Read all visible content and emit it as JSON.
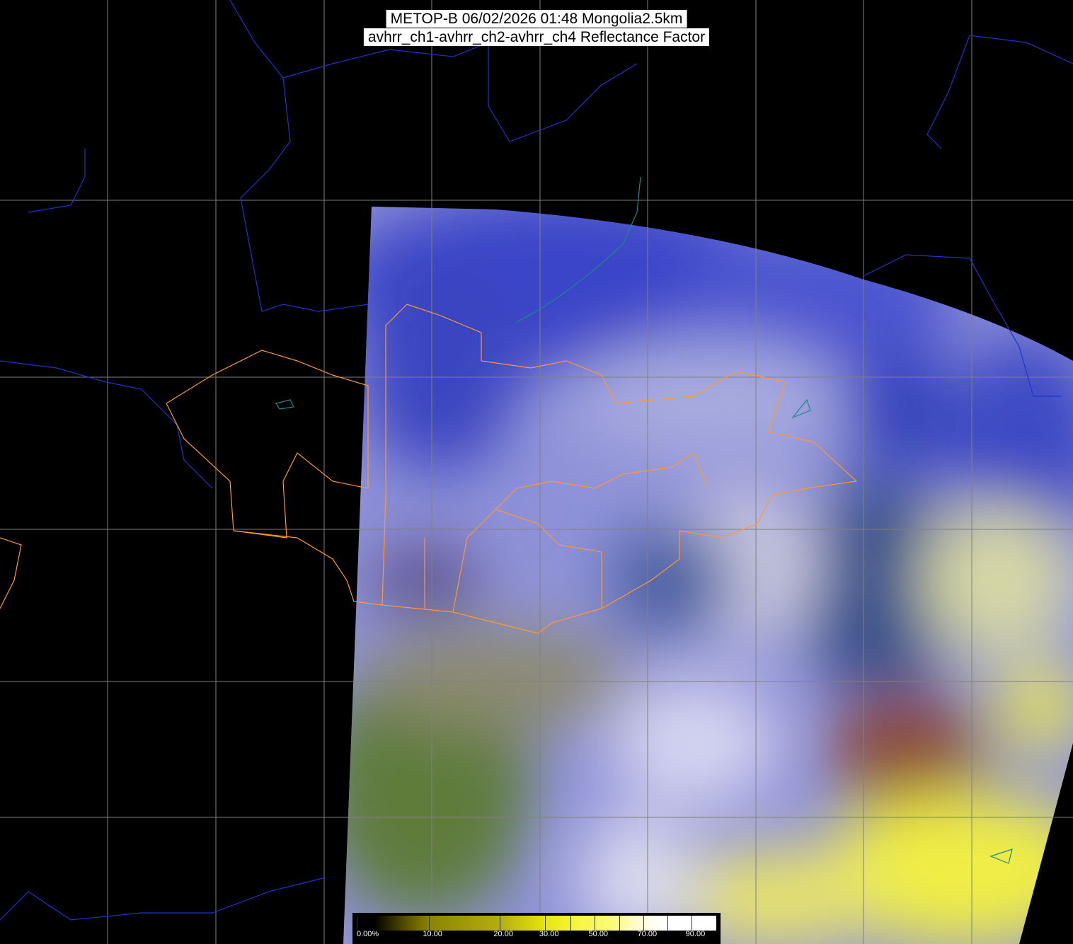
{
  "title": {
    "line1": "METOP-B 06/02/2026 01:48 Mongolia2.5km",
    "line2": "avhrr_ch1-avhrr_ch2-avhrr_ch4 Reflectance Factor"
  },
  "colorbar": {
    "ticks": [
      0,
      10,
      20,
      30,
      40,
      50,
      60,
      70,
      80,
      90
    ],
    "labels": [
      {
        "value": 0,
        "text": "0.00%"
      },
      {
        "value": 10,
        "text": "10.00"
      },
      {
        "value": 20,
        "text": "20.00"
      },
      {
        "value": 30,
        "text": "30.00"
      },
      {
        "value": 50,
        "text": "50.00"
      },
      {
        "value": 70,
        "text": "70.00"
      },
      {
        "value": 90,
        "text": "90.00"
      }
    ],
    "colors": [
      "#000000",
      "#8a8400",
      "#e4e40e",
      "#fafa70",
      "#ffffff"
    ]
  },
  "colors": {
    "background": "#000000",
    "grid": "#808080",
    "coastline": "#2233cc",
    "admin_border": "#ff9933",
    "lakes": "#1a8a8a"
  }
}
